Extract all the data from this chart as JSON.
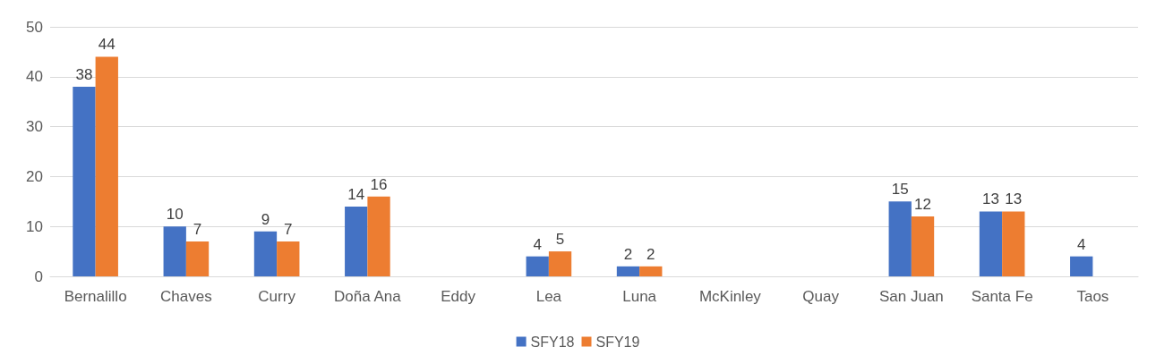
{
  "chart_data": {
    "type": "bar",
    "categories": [
      "Bernalillo",
      "Chaves",
      "Curry",
      "Doña Ana",
      "Eddy",
      "Lea",
      "Luna",
      "McKinley",
      "Quay",
      "San Juan",
      "Santa Fe",
      "Taos"
    ],
    "series": [
      {
        "name": "SFY18",
        "color": "#4472c4",
        "values": [
          38,
          10,
          9,
          14,
          null,
          4,
          2,
          null,
          null,
          15,
          13,
          4
        ]
      },
      {
        "name": "SFY19",
        "color": "#ed7d31",
        "values": [
          44,
          7,
          7,
          16,
          null,
          5,
          2,
          null,
          null,
          12,
          13,
          null
        ]
      }
    ],
    "ylim": [
      0,
      50
    ],
    "yticks": [
      0,
      10,
      20,
      30,
      40,
      50
    ],
    "grid": "y",
    "legend": "bottom",
    "data_labels": true
  }
}
